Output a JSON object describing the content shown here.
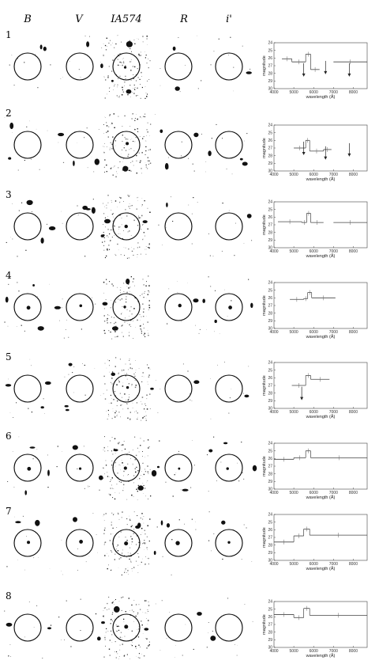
{
  "figure": {
    "band_headers": [
      "B",
      "V",
      "IA574",
      "R",
      "i'"
    ],
    "row_labels": [
      "1",
      "2",
      "3",
      "4",
      "5",
      "6",
      "7",
      "8"
    ]
  },
  "chart_data": [
    {
      "type": "line",
      "xlabel": "wavelength (Å)",
      "ylabel": "magnitude",
      "xlim": [
        4000,
        8700
      ],
      "ylim": [
        30,
        24
      ],
      "xticks": [
        4000,
        5000,
        6000,
        7000,
        8000
      ],
      "yticks": [
        24,
        25,
        26,
        27,
        28,
        29,
        30
      ],
      "segments": [
        [
          4400,
          4900,
          26.1
        ],
        [
          4900,
          5600,
          26.5
        ],
        [
          5600,
          5850,
          25.5
        ],
        [
          5850,
          6300,
          27.5
        ],
        [
          7000,
          8700,
          26.5
        ]
      ],
      "upper_limits": [
        [
          5500,
          27.5
        ],
        [
          6600,
          27.2
        ],
        [
          7800,
          27.5
        ]
      ]
    },
    {
      "type": "line",
      "xlabel": "wavelength (Å)",
      "ylabel": "magnitude",
      "xlim": [
        4000,
        8700
      ],
      "ylim": [
        30,
        24
      ],
      "xticks": [
        4000,
        5000,
        6000,
        7000,
        8000
      ],
      "yticks": [
        24,
        25,
        26,
        27,
        28,
        29,
        30
      ],
      "segments": [
        [
          5000,
          5600,
          27
        ],
        [
          5600,
          5800,
          26
        ],
        [
          5800,
          6500,
          27.4
        ],
        [
          6500,
          6900,
          27.2
        ]
      ],
      "upper_limits": [
        [
          5500,
          27
        ],
        [
          6600,
          27.6
        ],
        [
          7800,
          27.2
        ]
      ]
    },
    {
      "type": "line",
      "xlabel": "wavelength (Å)",
      "ylabel": "magnitude",
      "xlim": [
        4000,
        8700
      ],
      "ylim": [
        30,
        24
      ],
      "xticks": [
        4000,
        5000,
        6000,
        7000,
        8000
      ],
      "yticks": [
        24,
        25,
        26,
        27,
        28,
        29,
        30
      ],
      "segments": [
        [
          4200,
          5400,
          26.6
        ],
        [
          5400,
          5650,
          26.7
        ],
        [
          5650,
          5850,
          25.5
        ],
        [
          5850,
          6500,
          26.7
        ],
        [
          7000,
          8700,
          26.7
        ]
      ],
      "upper_limits": []
    },
    {
      "type": "line",
      "xlabel": "wavelength (Å)",
      "ylabel": "magnitude",
      "xlim": [
        4000,
        8700
      ],
      "ylim": [
        30,
        24
      ],
      "xticks": [
        4000,
        5000,
        6000,
        7000,
        8000
      ],
      "yticks": [
        24,
        25,
        26,
        27,
        28,
        29,
        30
      ],
      "segments": [
        [
          4800,
          5500,
          26.2
        ],
        [
          5500,
          5700,
          26.1
        ],
        [
          5700,
          5900,
          25.3
        ],
        [
          5900,
          7100,
          26.0
        ]
      ],
      "upper_limits": []
    },
    {
      "type": "line",
      "xlabel": "wavelength (Å)",
      "ylabel": "magnitude",
      "xlim": [
        4000,
        8700
      ],
      "ylim": [
        30,
        24
      ],
      "xticks": [
        4000,
        5000,
        6000,
        7000,
        8000
      ],
      "yticks": [
        24,
        25,
        26,
        27,
        28,
        29,
        30
      ],
      "segments": [
        [
          4900,
          5600,
          27.0
        ],
        [
          5600,
          5850,
          25.7
        ],
        [
          5850,
          6800,
          26.2
        ]
      ],
      "upper_limits": [
        [
          5400,
          28.0
        ]
      ]
    },
    {
      "type": "line",
      "xlabel": "wavelength (Å)",
      "ylabel": "magnitude",
      "xlim": [
        4000,
        8700
      ],
      "ylim": [
        30,
        24
      ],
      "xticks": [
        4000,
        5000,
        6000,
        7000,
        8000
      ],
      "yticks": [
        24,
        25,
        26,
        27,
        28,
        29,
        30
      ],
      "segments": [
        [
          4000,
          5000,
          26.1
        ],
        [
          5000,
          5600,
          25.9
        ],
        [
          5600,
          5850,
          25.0
        ],
        [
          5850,
          8700,
          25.9
        ]
      ],
      "upper_limits": []
    },
    {
      "type": "line",
      "xlabel": "wavelength (Å)",
      "ylabel": "magnitude",
      "xlim": [
        4000,
        8700
      ],
      "ylim": [
        30,
        24
      ],
      "xticks": [
        4000,
        5000,
        6000,
        7000,
        8000
      ],
      "yticks": [
        24,
        25,
        26,
        27,
        28,
        29,
        30
      ],
      "segments": [
        [
          4000,
          5000,
          27.6
        ],
        [
          5000,
          5500,
          26.8
        ],
        [
          5500,
          5800,
          25.9
        ],
        [
          5800,
          8700,
          26.7
        ]
      ],
      "upper_limits": []
    },
    {
      "type": "line",
      "xlabel": "wavelength (Å)",
      "ylabel": "magnitude",
      "xlim": [
        4000,
        8700
      ],
      "ylim": [
        30,
        24
      ],
      "xticks": [
        4000,
        5000,
        6000,
        7000,
        8000
      ],
      "yticks": [
        24,
        25,
        26,
        27,
        28,
        29,
        30
      ],
      "segments": [
        [
          4000,
          5000,
          25.7
        ],
        [
          5000,
          5500,
          26.1
        ],
        [
          5500,
          5800,
          24.9
        ],
        [
          5800,
          8700,
          25.8
        ]
      ],
      "upper_limits": []
    }
  ]
}
